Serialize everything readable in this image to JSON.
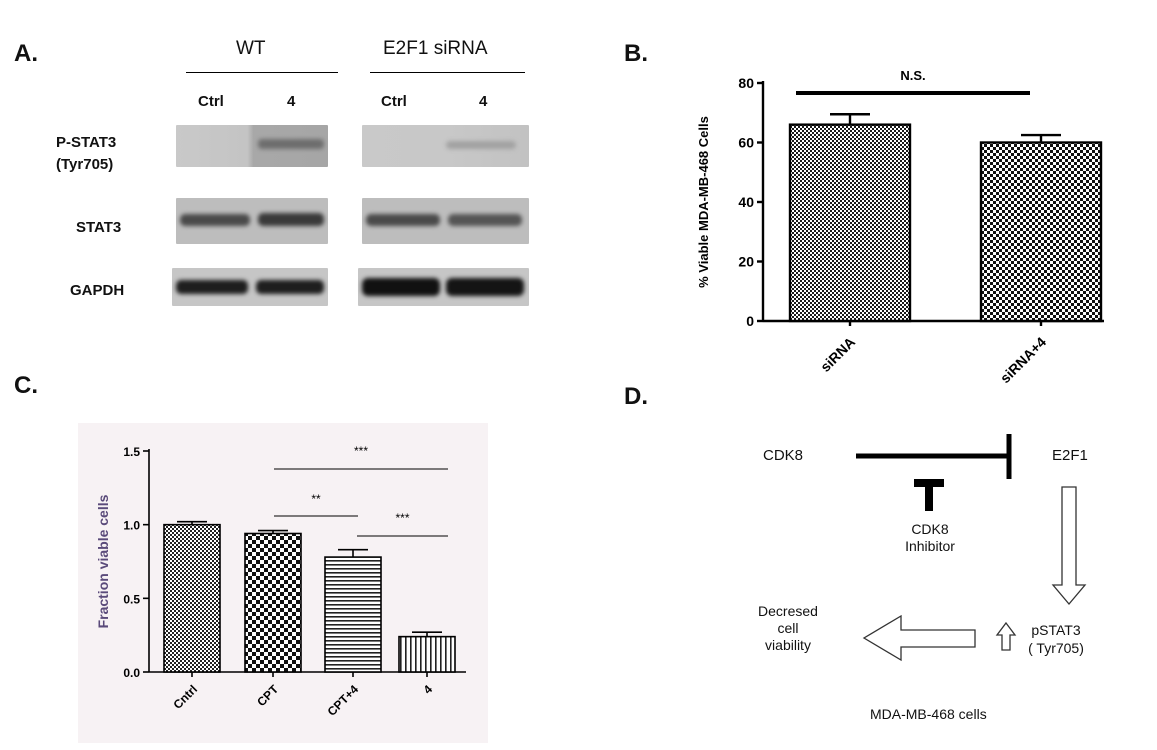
{
  "panels": {
    "a": {
      "letter": "A.",
      "groups": [
        "WT",
        "E2F1 siRNA"
      ],
      "lanes": [
        "Ctrl",
        "4",
        "Ctrl",
        "4"
      ],
      "rows": [
        "P-STAT3\n(Tyr705)",
        "STAT3",
        "GAPDH"
      ]
    },
    "b": {
      "letter": "B."
    },
    "c": {
      "letter": "C."
    },
    "d": {
      "letter": "D.",
      "cdk8": "CDK8",
      "e2f1": "E2F1",
      "inhibitor": "CDK8\nInhibitor",
      "pstat3": "pSTAT3\n( Tyr705)",
      "viability": "Decresed\ncell\nviability",
      "cells": "MDA-MB-468 cells"
    }
  },
  "chart_data": [
    {
      "type": "bar",
      "categories": [
        "siRNA",
        "siRNA+4"
      ],
      "values": [
        66,
        60
      ],
      "errors": [
        3.5,
        2.5
      ],
      "ylabel": "% Viable MDA-MB-468 Cells",
      "ylim": [
        0,
        80
      ],
      "yticks": [
        0,
        20,
        40,
        60,
        80
      ],
      "annotations": [
        {
          "text": "N.S.",
          "between": [
            0,
            1
          ]
        }
      ],
      "grid": false,
      "colors": {
        "axis": "#000000",
        "background": "#ffffff"
      }
    },
    {
      "type": "bar",
      "categories": [
        "Cntrl",
        "CPT",
        "CPT+4",
        "4"
      ],
      "values": [
        1.0,
        0.94,
        0.78,
        0.24
      ],
      "errors": [
        0.02,
        0.02,
        0.05,
        0.03
      ],
      "ylabel": "Fraction viable cells",
      "ylim": [
        0,
        1.5
      ],
      "yticks": [
        "0.0",
        "0.5",
        "1.0",
        "1.5"
      ],
      "annotations": [
        {
          "text": "***",
          "between": [
            1,
            3
          ]
        },
        {
          "text": "**",
          "between": [
            1,
            2
          ]
        },
        {
          "text": "***",
          "between": [
            2,
            3
          ]
        }
      ],
      "grid": false,
      "colors": {
        "axis": "#000000",
        "background": "#f7f2f4",
        "ylabel": "#5a4a7a"
      }
    }
  ]
}
